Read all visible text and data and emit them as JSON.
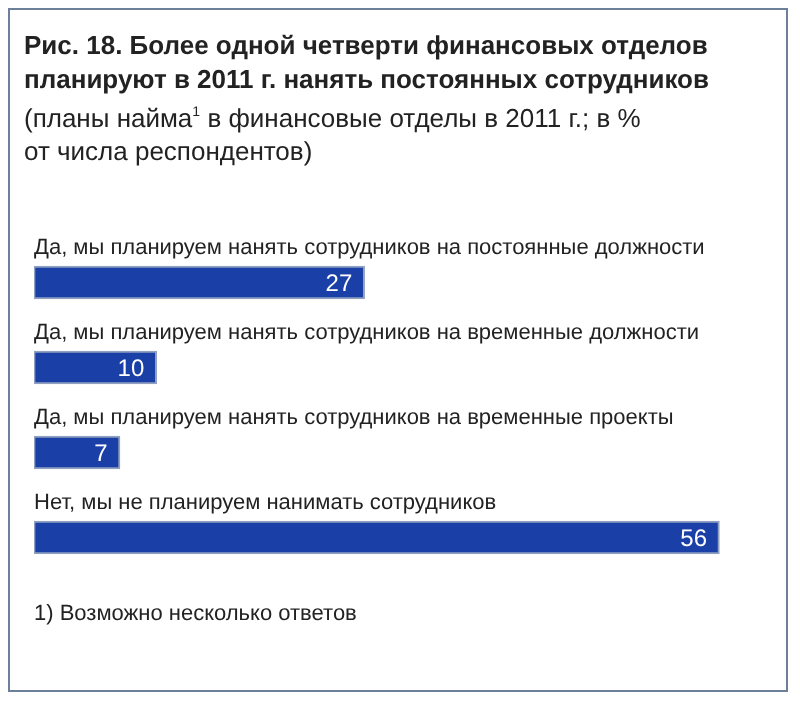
{
  "chart_data": {
    "type": "bar",
    "orientation": "horizontal",
    "title": "Рис. 18. Более одной четверти финансовых отделов планируют в 2011 г. нанять постоянных сотрудников",
    "subtitle": "(планы найма$^{1}$ в финансовые отделы в 2011 г.; в % от числа респондентов)",
    "categories": [
      "Да, мы планируем нанять сотрудников на постоянные должности",
      "Да, мы планируем нанять сотрудников на временные должности",
      "Да, мы планируем нанять сотрудников на временные проекты",
      "Нет, мы не планируем нанимать сотрудников"
    ],
    "values": [
      27,
      10,
      7,
      56
    ],
    "color": "#1a3fa6",
    "data_labels": true,
    "annotations": [
      "1)  Возможно несколько ответов"
    ]
  }
}
